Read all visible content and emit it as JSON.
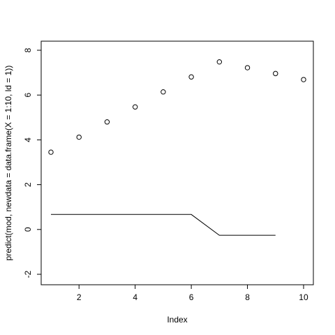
{
  "chart_data": {
    "type": "scatter",
    "title": "",
    "xlabel": "Index",
    "ylabel": "predict(mod, newdata = data.frame(X = 1:10, ld = 1))",
    "xlim": [
      1,
      10
    ],
    "ylim": [
      -2,
      8
    ],
    "x_ticks": [
      "2",
      "4",
      "6",
      "8",
      "10"
    ],
    "y_ticks": [
      "-2",
      "0",
      "2",
      "4",
      "6",
      "8"
    ],
    "grid": false,
    "legend": "none",
    "series": [
      {
        "type": "scatter",
        "marker": "open-circle",
        "x": [
          1,
          2,
          3,
          4,
          5,
          6,
          7,
          8,
          9,
          10
        ],
        "y": [
          3.45,
          4.12,
          4.8,
          5.47,
          6.14,
          6.81,
          7.48,
          7.22,
          6.96,
          6.69
        ]
      },
      {
        "type": "line",
        "x": [
          1,
          2,
          3,
          4,
          5,
          6,
          7,
          8,
          9
        ],
        "y": [
          0.67,
          0.67,
          0.67,
          0.67,
          0.67,
          0.67,
          -0.26,
          -0.26,
          -0.26
        ]
      }
    ]
  }
}
